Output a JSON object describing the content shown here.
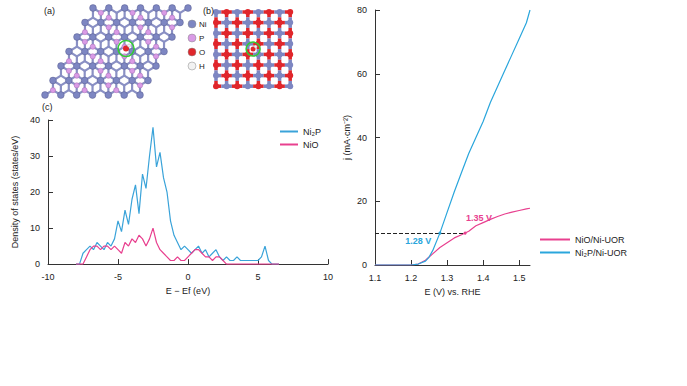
{
  "figure": {
    "structures": [
      {
        "label": "(a)"
      },
      {
        "label": "(b)"
      }
    ],
    "atom_legend": [
      {
        "label": "Ni",
        "color": "#7d86c2"
      },
      {
        "label": "P",
        "color": "#d99be6"
      },
      {
        "label": "O",
        "color": "#e0262b"
      },
      {
        "label": "H",
        "color": "#f2f2f2"
      }
    ]
  },
  "chart_data": [
    {
      "type": "line",
      "panel_label": "(c)",
      "x_label": "E − Ef (eV)",
      "y_label": "Density of states (states/eV)",
      "x": [
        -8,
        -7.75,
        -7.5,
        -7.25,
        -7,
        -6.75,
        -6.5,
        -6.25,
        -6,
        -5.75,
        -5.5,
        -5.25,
        -5,
        -4.75,
        -4.5,
        -4.25,
        -4,
        -3.75,
        -3.5,
        -3.25,
        -3,
        -2.75,
        -2.5,
        -2.25,
        -2,
        -1.75,
        -1.5,
        -1.25,
        -1,
        -0.75,
        -0.5,
        -0.25,
        0,
        0.25,
        0.5,
        0.75,
        1,
        1.25,
        1.5,
        1.75,
        2,
        2.25,
        2.5,
        2.75,
        3,
        3.25,
        3.5,
        3.75,
        4,
        4.25,
        4.5,
        4.75,
        5,
        5.25,
        5.5,
        5.75,
        6,
        6.25,
        6.5
      ],
      "series": [
        {
          "name": "Ni₂P",
          "color": "#3aa3d9",
          "values": [
            0,
            0,
            3,
            4,
            5,
            4,
            6,
            5,
            4,
            6,
            5,
            7,
            12,
            9,
            15,
            11,
            18,
            22,
            14,
            25,
            21,
            30,
            38,
            27,
            31,
            24,
            20,
            12,
            8,
            6,
            4,
            5,
            4,
            3,
            4,
            5,
            3,
            4,
            2,
            3,
            4,
            2,
            1,
            2,
            1,
            1,
            2,
            1,
            1,
            1,
            1,
            1,
            1,
            2,
            5,
            1,
            0,
            0,
            0
          ]
        },
        {
          "name": "NiO",
          "color": "#e8408f",
          "values": [
            0,
            0,
            0,
            2,
            4,
            5,
            5,
            4,
            5,
            5,
            4,
            5,
            4,
            3,
            6,
            5,
            7,
            6,
            8,
            7,
            5,
            7,
            10,
            6,
            4,
            3,
            2,
            1,
            1,
            2,
            1,
            1,
            2,
            3,
            4,
            4,
            3,
            2,
            2,
            1,
            2,
            2,
            1,
            0,
            0,
            0,
            0,
            0,
            0,
            0,
            0,
            0,
            0,
            0,
            0,
            0,
            0,
            0,
            0
          ]
        }
      ],
      "xlim": [
        -10,
        10
      ],
      "xticks": [
        -10,
        -5,
        0,
        5,
        10
      ],
      "ylim": [
        0,
        40
      ],
      "yticks": [
        0,
        10,
        20,
        30,
        40
      ],
      "grid": false,
      "legend": "upper right"
    },
    {
      "type": "line",
      "x_label": "E (V) vs. RHE",
      "y_label": "j (mA·cm⁻²)",
      "x": [
        1.1,
        1.15,
        1.2,
        1.22,
        1.24,
        1.25,
        1.26,
        1.28,
        1.3,
        1.32,
        1.34,
        1.36,
        1.38,
        1.4,
        1.42,
        1.44,
        1.46,
        1.48,
        1.5,
        1.52,
        1.53
      ],
      "series": [
        {
          "name": "NiO/Ni-UOR",
          "color": "#e8408f",
          "values": [
            0,
            0,
            0,
            0.3,
            1.5,
            2.5,
            3.5,
            5.5,
            7,
            8.5,
            9.5,
            10.6,
            12.3,
            13.3,
            14.3,
            15.2,
            16,
            16.6,
            17.1,
            17.6,
            17.8
          ]
        },
        {
          "name": "Ni₂P/Ni-UOR",
          "color": "#2aa6dc",
          "values": [
            0,
            0,
            0,
            0.3,
            1.2,
            2.5,
            4.5,
            10,
            16.5,
            23,
            29,
            35,
            40,
            45,
            51,
            56,
            61,
            66,
            71,
            76,
            80
          ]
        }
      ],
      "xlim": [
        1.1,
        1.53
      ],
      "xticks": [
        1.1,
        1.2,
        1.3,
        1.4,
        1.5
      ],
      "ylim": [
        0,
        80
      ],
      "yticks": [
        0,
        20,
        40,
        60,
        80
      ],
      "reference_line": {
        "y": 10,
        "x": [
          1.1,
          1.35
        ],
        "line_style": "dashed"
      },
      "annotations": [
        {
          "text": "1.28 V",
          "x": 1.28,
          "y": 10,
          "color": "#2aa6dc"
        },
        {
          "text": "1.35 V",
          "x": 1.35,
          "y": 10,
          "color": "#e8408f"
        }
      ],
      "grid": false,
      "legend": "lower right"
    }
  ]
}
